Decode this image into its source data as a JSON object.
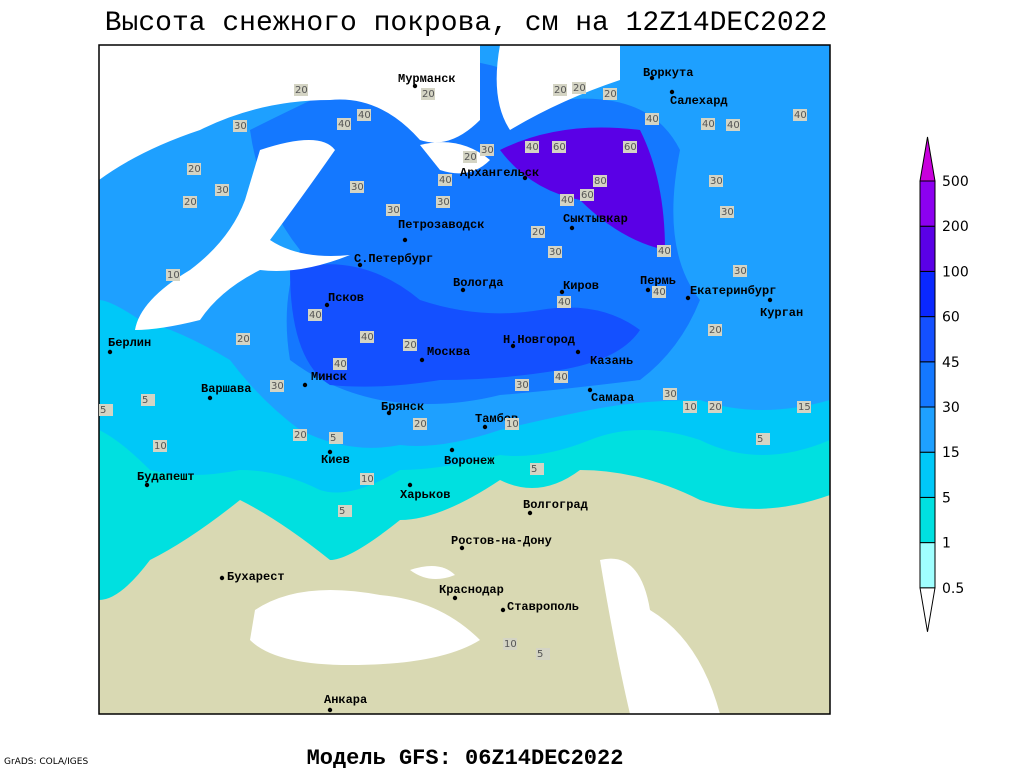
{
  "title": "Высота снежного покрова, см на 12Z14DEC2022",
  "footer": "Модель GFS: 06Z14DEC2022",
  "credit": "GrADS: COLA/IGES",
  "legend": {
    "levels": [
      0.5,
      1,
      5,
      15,
      30,
      45,
      60,
      100,
      200,
      500
    ],
    "colors": [
      "#ffffff",
      "#a0ffff",
      "#00e0e0",
      "#00c8f8",
      "#1ea0ff",
      "#1478ff",
      "#1450ff",
      "#0a28ff",
      "#5a00e6",
      "#8c00f0",
      "#c800dc"
    ]
  },
  "cities": [
    "Мурманск",
    "Воркута",
    "Салехард",
    "Архангельск",
    "Сыктывкар",
    "Петрозаводск",
    "С.Петербург",
    "Вологда",
    "Киров",
    "Пермь",
    "Екатеринбург",
    "Курган",
    "Псков",
    "Н.Новгород",
    "Казань",
    "Москва",
    "Минск",
    "Берлин",
    "Варшава",
    "Самара",
    "Брянск",
    "Тамбов",
    "Киев",
    "Воронеж",
    "Будапешт",
    "Харьков",
    "Волгоград",
    "Ростов-на-Дону",
    "Бухарест",
    "Краснодар",
    "Ставрополь",
    "Анкара"
  ],
  "contour_labels": [
    20,
    40,
    40,
    20,
    30,
    20,
    30,
    20,
    10,
    30,
    30,
    30,
    30,
    20,
    40,
    60,
    60,
    80,
    40,
    60,
    20,
    30,
    40,
    40,
    40,
    40,
    30,
    30,
    40,
    30,
    40,
    40,
    20,
    40,
    40,
    20,
    40,
    30,
    20,
    30,
    40,
    30,
    10,
    20,
    15,
    10,
    20,
    20,
    5,
    10,
    5,
    5,
    5,
    5,
    10,
    5,
    10,
    5,
    20,
    20,
    20,
    40
  ]
}
